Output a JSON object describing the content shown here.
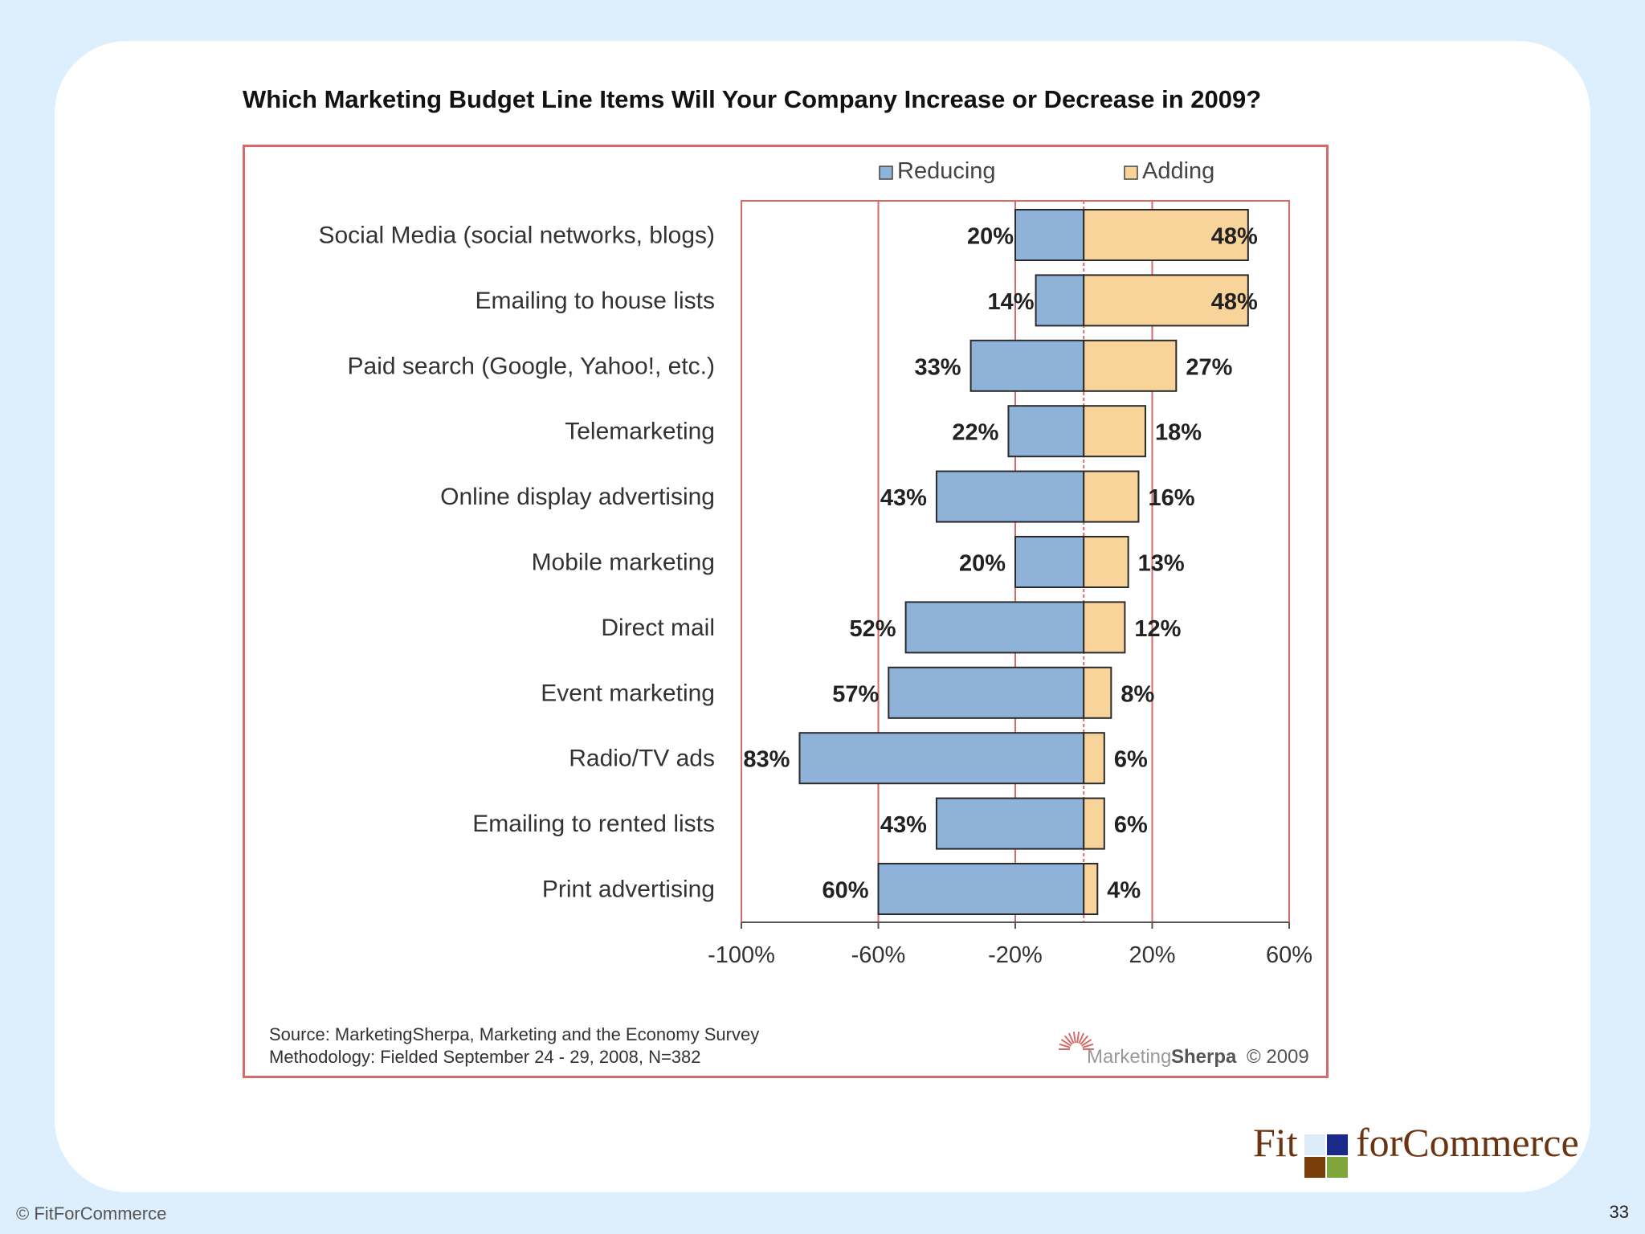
{
  "chart_data": {
    "type": "bar",
    "orientation": "horizontal-diverging",
    "title": "Which Marketing Budget Line Items Will Your Company Increase or Decrease in 2009?",
    "legend": [
      "Reducing",
      "Adding"
    ],
    "legend_position": "top-right",
    "categories": [
      "Social Media (social networks, blogs)",
      "Emailing to house lists",
      "Paid search (Google, Yahoo!, etc.)",
      "Telemarketing",
      "Online display advertising",
      "Mobile marketing",
      "Direct mail",
      "Event marketing",
      "Radio/TV ads",
      "Emailing to rented lists",
      "Print advertising"
    ],
    "series": [
      {
        "name": "Reducing",
        "values": [
          20,
          14,
          33,
          22,
          43,
          20,
          52,
          57,
          83,
          43,
          60
        ]
      },
      {
        "name": "Adding",
        "values": [
          48,
          48,
          27,
          18,
          16,
          13,
          12,
          8,
          6,
          6,
          4
        ]
      }
    ],
    "reducing_labels": [
      "20%",
      "14%",
      "33%",
      "22%",
      "43%",
      "20%",
      "52%",
      "57%",
      "83%",
      "43%",
      "60%"
    ],
    "adding_labels": [
      "48%",
      "48%",
      "27%",
      "18%",
      "16%",
      "13%",
      "12%",
      "8%",
      "6%",
      "6%",
      "4%"
    ],
    "xlim": [
      -100,
      60
    ],
    "x_ticks": [
      -100,
      -60,
      -20,
      20,
      60
    ],
    "x_tick_labels": [
      "-100%",
      "-60%",
      "-20%",
      "20%",
      "60%"
    ],
    "grid": true,
    "source_line1": "Source: MarketingSherpa, Marketing and the Economy Survey",
    "source_line2": "Methodology: Fielded September 24 - 29, 2008, N=382",
    "credit_brand_a": "Marketing",
    "credit_brand_b": "Sherpa",
    "credit_year": "© 2009",
    "colors": {
      "reducing": "#8fb2d9",
      "adding": "#f9d49a",
      "frame": "#d46a6a",
      "gridline": "#d46a6a",
      "bar_outline": "#2a2a2a"
    }
  },
  "footer": {
    "copyright": "© FitForCommerce",
    "page_number": "33"
  },
  "brand": {
    "word_a": "Fit",
    "word_b": "forCommerce"
  }
}
